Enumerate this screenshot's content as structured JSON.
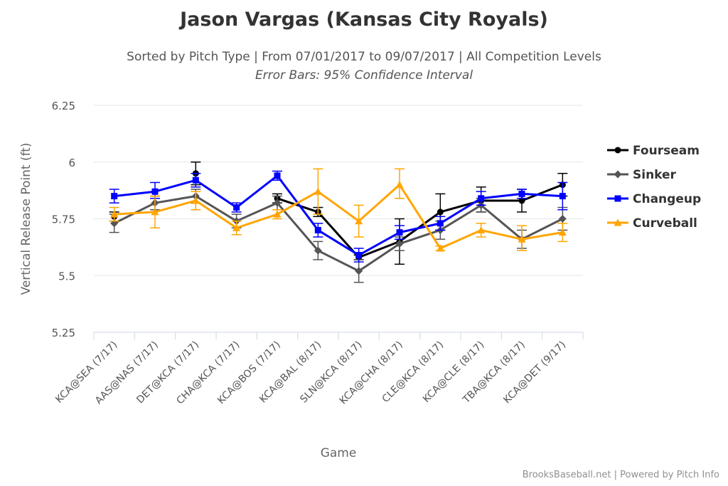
{
  "chart_data": {
    "type": "line",
    "title": "Jason Vargas (Kansas City Royals)",
    "subtitle": "Sorted by Pitch Type | From 07/01/2017 to 09/07/2017 | All Competition Levels",
    "subtitle2": "Error Bars: 95% Confidence Interval",
    "xlabel": "Game",
    "ylabel": "Vertical Release Point (ft)",
    "ylim": [
      5.25,
      6.25
    ],
    "yticks": [
      "5.25",
      "5.5",
      "5.75",
      "6",
      "6.25"
    ],
    "ytick_values": [
      5.25,
      5.5,
      5.75,
      6,
      6.25
    ],
    "categories": [
      "KCA@SEA (7/17)",
      "AAS@NAS (7/17)",
      "DET@KCA (7/17)",
      "CHA@KCA (7/17)",
      "KCA@BOS (7/17)",
      "KCA@BAL (8/17)",
      "SLN@KCA (8/17)",
      "KCA@CHA (8/17)",
      "CLE@KCA (8/17)",
      "KCA@CLE (8/17)",
      "TBA@KCA (8/17)",
      "KCA@DET (9/17)"
    ],
    "legend_position": "right",
    "grid": true,
    "series": [
      {
        "name": "Fourseam",
        "color": "#000000",
        "marker": "circle",
        "values": [
          5.76,
          null,
          5.95,
          null,
          5.84,
          5.78,
          5.58,
          5.65,
          5.78,
          5.83,
          5.83,
          5.9
        ],
        "low": [
          5.74,
          null,
          5.9,
          null,
          5.82,
          5.76,
          5.57,
          5.55,
          5.7,
          5.78,
          5.78,
          5.85
        ],
        "high": [
          5.78,
          null,
          6.0,
          null,
          5.86,
          5.8,
          5.59,
          5.75,
          5.86,
          5.89,
          5.88,
          5.95
        ]
      },
      {
        "name": "Sinker",
        "color": "#555555",
        "marker": "diamond",
        "values": [
          5.73,
          5.82,
          5.85,
          5.74,
          5.82,
          5.61,
          5.52,
          5.64,
          5.7,
          5.81,
          5.66,
          5.75
        ],
        "low": [
          5.69,
          5.79,
          5.82,
          5.71,
          5.79,
          5.57,
          5.47,
          5.61,
          5.66,
          5.78,
          5.62,
          5.7
        ],
        "high": [
          5.77,
          5.85,
          5.88,
          5.77,
          5.85,
          5.65,
          5.57,
          5.67,
          5.74,
          5.84,
          5.7,
          5.8
        ]
      },
      {
        "name": "Changeup",
        "color": "#0000ff",
        "marker": "square",
        "values": [
          5.85,
          5.87,
          5.92,
          5.8,
          5.94,
          5.7,
          5.59,
          5.69,
          5.73,
          5.84,
          5.86,
          5.85
        ],
        "low": [
          5.82,
          5.84,
          5.89,
          5.78,
          5.92,
          5.67,
          5.56,
          5.66,
          5.7,
          5.81,
          5.84,
          5.79
        ],
        "high": [
          5.88,
          5.91,
          5.95,
          5.82,
          5.96,
          5.73,
          5.62,
          5.72,
          5.76,
          5.87,
          5.88,
          5.91
        ]
      },
      {
        "name": "Curveball",
        "color": "#ffa500",
        "marker": "triangle",
        "values": [
          5.77,
          5.78,
          5.83,
          5.71,
          5.77,
          5.87,
          5.74,
          5.9,
          5.62,
          5.7,
          5.66,
          5.69
        ],
        "low": [
          5.74,
          5.71,
          5.79,
          5.68,
          5.75,
          5.77,
          5.67,
          5.84,
          5.61,
          5.67,
          5.61,
          5.65
        ],
        "high": [
          5.8,
          5.85,
          5.87,
          5.74,
          5.79,
          5.97,
          5.81,
          5.97,
          5.63,
          5.73,
          5.72,
          5.73
        ]
      }
    ]
  },
  "credit": "BrooksBaseball.net | Powered by Pitch Info"
}
